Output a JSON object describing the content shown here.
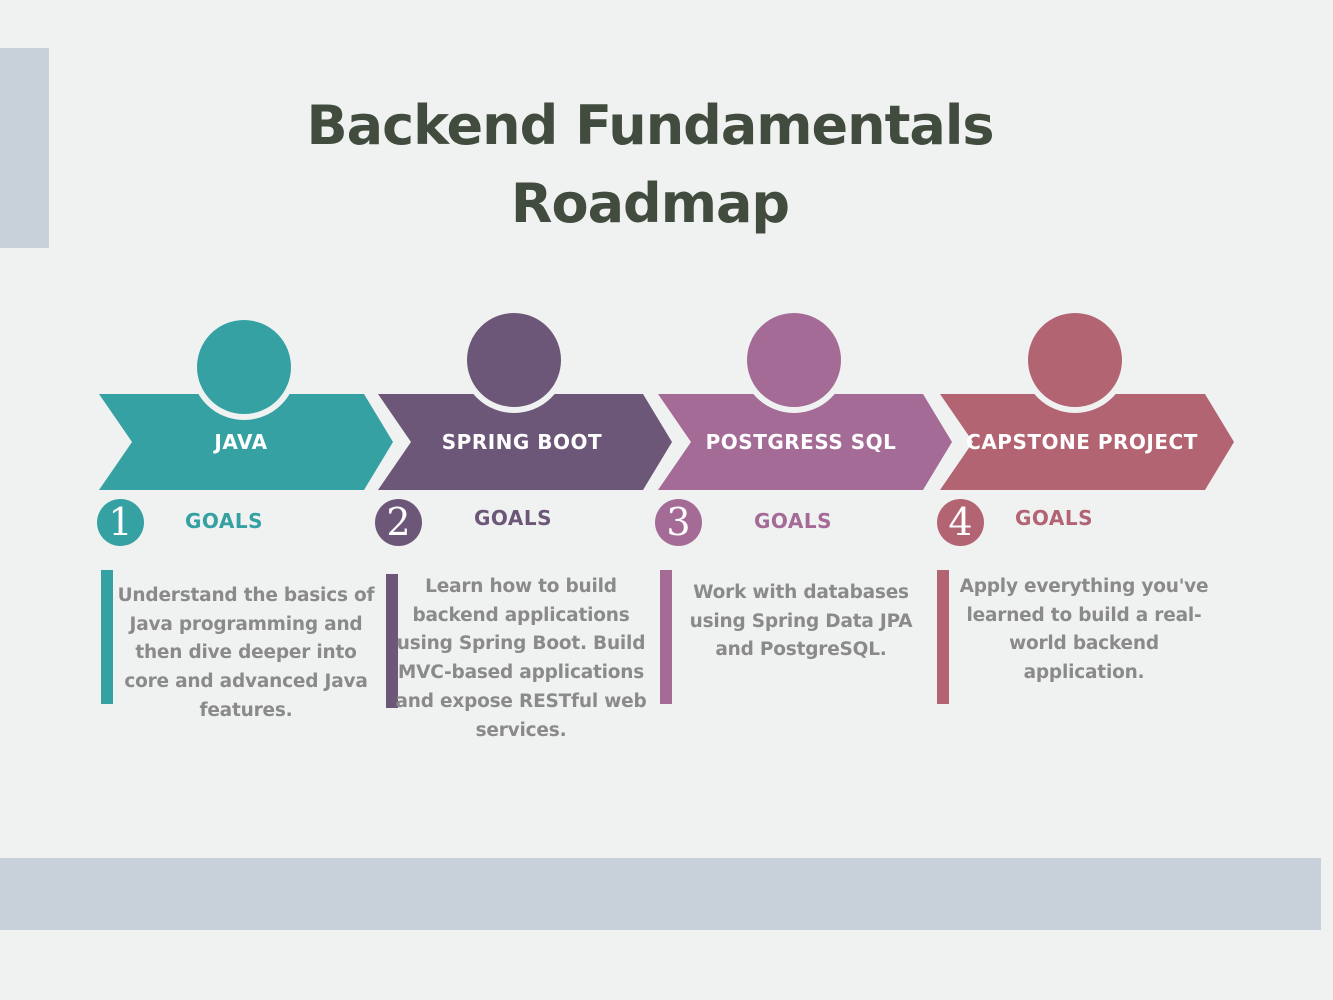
{
  "title": {
    "line1": "Backend Fundamentals",
    "line2": "Roadmap"
  },
  "stages": [
    {
      "number": "1",
      "label": "JAVA",
      "goals": "GOALS",
      "color": "#35a1a3",
      "description": "Understand the basics of Java programming and then dive deeper into core and advanced Java features."
    },
    {
      "number": "2",
      "label": "SPRING BOOT",
      "goals": "GOALS",
      "color": "#6c5778",
      "description": "Learn how to build backend applications using Spring Boot. Build MVC-based applications and expose RESTful web services."
    },
    {
      "number": "3",
      "label": "POSTGRESS SQL",
      "goals": "GOALS",
      "color": "#a56b97",
      "description": "Work with databases using Spring Data JPA and PostgreSQL."
    },
    {
      "number": "4",
      "label": "CAPSTONE PROJECT",
      "goals": "GOALS",
      "color": "#b36473",
      "description": "Apply everything you've learned to build a real-world backend application."
    }
  ]
}
